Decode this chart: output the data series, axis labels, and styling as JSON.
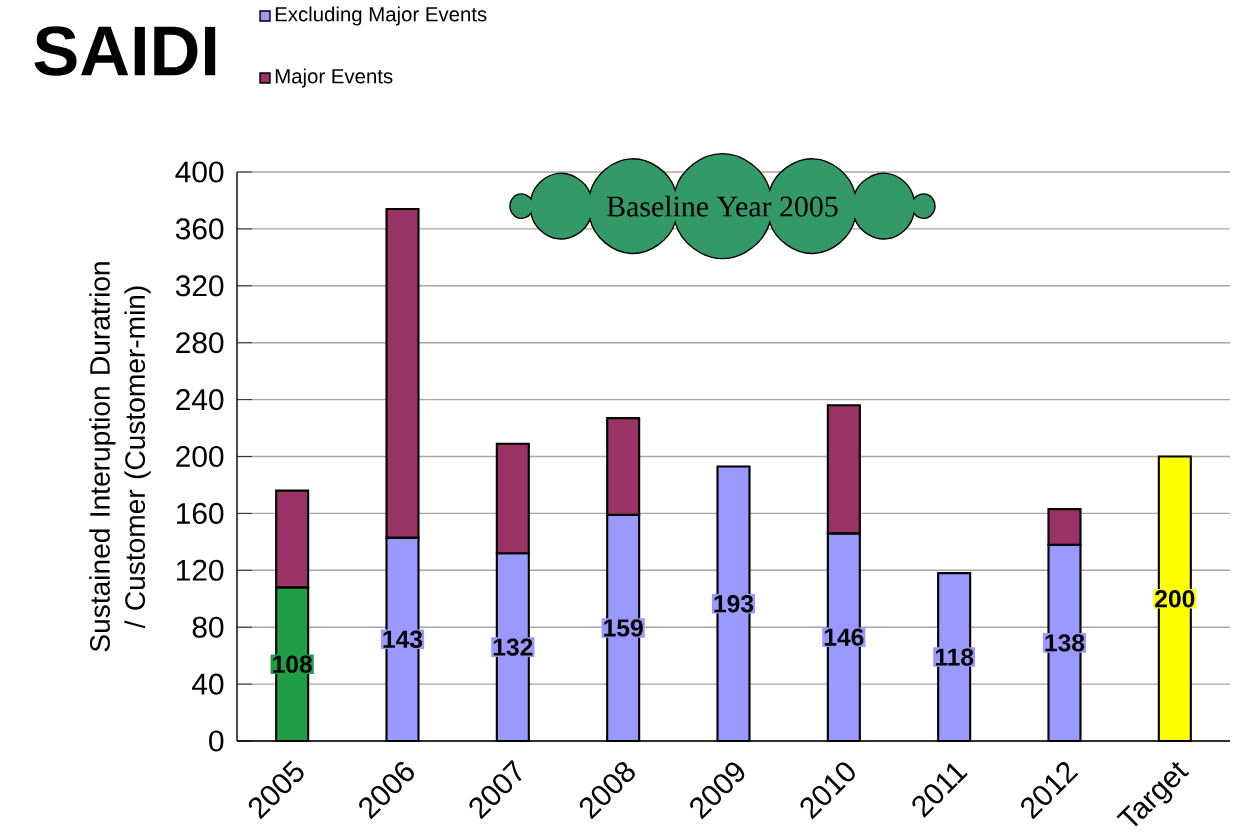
{
  "chart_data": {
    "type": "bar",
    "title": "SAIDI",
    "ylabel": "Sustained Interuption Duratrion / Customer (Customer-min)",
    "categories": [
      "2005",
      "2006",
      "2007",
      "2008",
      "2009",
      "2010",
      "2011",
      "2012",
      "Target"
    ],
    "stacked": true,
    "series": [
      {
        "name": "Excluding Major Events",
        "color": "#9999ff",
        "colors": [
          "#1f9e46",
          "#9999ff",
          "#9999ff",
          "#9999ff",
          "#9999ff",
          "#9999ff",
          "#9999ff",
          "#9999ff",
          "#ffff00"
        ],
        "values": [
          108,
          143,
          132,
          159,
          193,
          146,
          118,
          138,
          200
        ],
        "value_labels": [
          "108",
          "143",
          "132",
          "159",
          "193",
          "146",
          "118",
          "138",
          "200"
        ]
      },
      {
        "name": "Major Events",
        "color": "#993366",
        "values": [
          68,
          231,
          77,
          68,
          null,
          90,
          null,
          25,
          null
        ]
      }
    ],
    "ylim": [
      0,
      400
    ],
    "yticks": [
      0,
      40,
      80,
      120,
      160,
      200,
      240,
      280,
      320,
      360,
      400
    ],
    "grid": "y",
    "legend": "top left",
    "annotations": [
      "Baseline Year 2005"
    ]
  }
}
